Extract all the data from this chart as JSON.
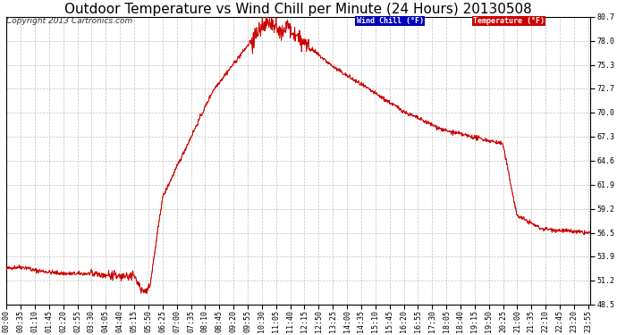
{
  "title": "Outdoor Temperature vs Wind Chill per Minute (24 Hours) 20130508",
  "copyright": "Copyright 2013 Cartronics.com",
  "ylim": [
    48.5,
    80.7
  ],
  "yticks": [
    48.5,
    51.2,
    53.9,
    56.5,
    59.2,
    61.9,
    64.6,
    67.3,
    70.0,
    72.7,
    75.3,
    78.0,
    80.7
  ],
  "line_color": "#cc0000",
  "background_color": "#ffffff",
  "plot_bg_color": "#ffffff",
  "grid_color": "#bbbbbb",
  "legend_items": [
    {
      "label": "Wind Chill (°F)",
      "bg": "#0000bb",
      "fg": "#ffffff"
    },
    {
      "label": "Temperature (°F)",
      "bg": "#cc0000",
      "fg": "#ffffff"
    }
  ],
  "title_fontsize": 11,
  "copyright_fontsize": 6.5,
  "tick_fontsize": 6,
  "n_minutes": 1440,
  "xtick_step_minutes": 35
}
